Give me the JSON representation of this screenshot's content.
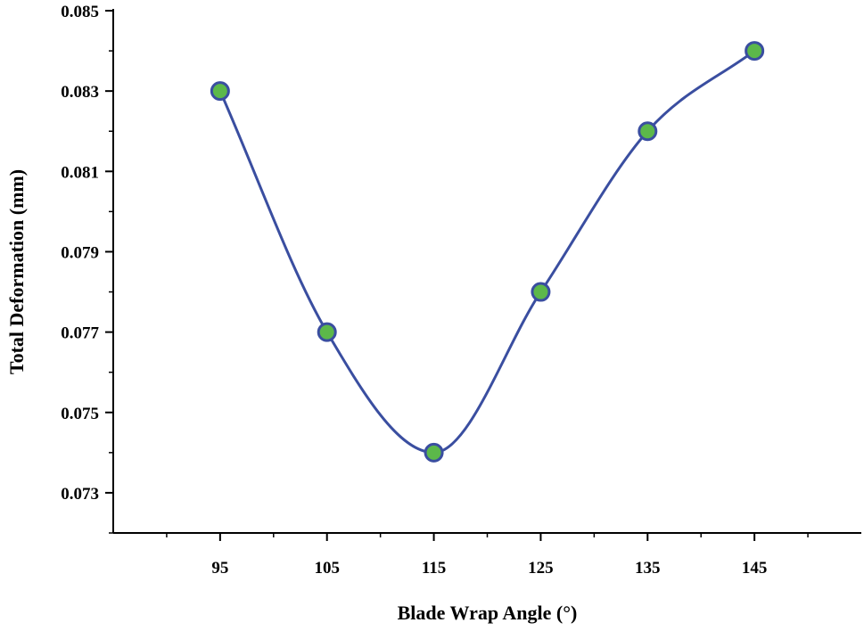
{
  "chart_data": {
    "type": "line",
    "title": "",
    "xlabel": "Blade Wrap Angle (°)",
    "ylabel": "Total Deformation (mm)",
    "x": [
      95,
      105,
      115,
      125,
      135,
      145
    ],
    "series": [
      {
        "name": "Total Deformation",
        "values": [
          0.083,
          0.077,
          0.074,
          0.078,
          0.082,
          0.084
        ],
        "line_color": "#3a4ea0",
        "marker_fill": "#5cb84a",
        "marker_edge": "#3a4ea0",
        "smooth": true
      }
    ],
    "xlim": [
      85,
      155
    ],
    "ylim": [
      0.072,
      0.085
    ],
    "xticks": [
      95,
      105,
      115,
      125,
      135,
      145
    ],
    "xtick_labels": [
      "95",
      "105",
      "115",
      "125",
      "135",
      "145"
    ],
    "yticks": [
      0.073,
      0.075,
      0.077,
      0.079,
      0.081,
      0.083,
      0.085
    ],
    "ytick_labels": [
      "0.073",
      "0.075",
      "0.077",
      "0.079",
      "0.081",
      "0.083",
      "0.085"
    ],
    "grid": false,
    "legend": "none"
  }
}
